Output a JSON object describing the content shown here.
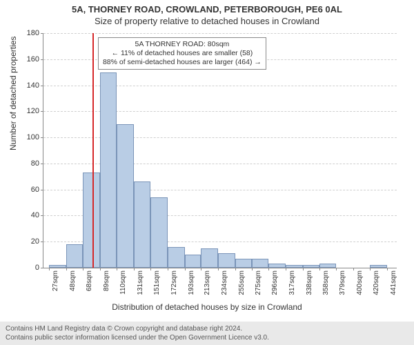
{
  "title_line1": "5A, THORNEY ROAD, CROWLAND, PETERBOROUGH, PE6 0AL",
  "title_line2": "Size of property relative to detached houses in Crowland",
  "ylabel": "Number of detached properties",
  "xlabel": "Distribution of detached houses by size in Crowland",
  "chart": {
    "type": "histogram",
    "background_color": "#ffffff",
    "grid_color": "#cfcfcf",
    "axis_color": "#888888",
    "bar_fill": "#b9cde5",
    "bar_border": "#7a94b8",
    "ref_line_color": "#d62728",
    "ref_line_x": 80,
    "ylim": [
      0,
      180
    ],
    "ytick_step": 20,
    "x_tick_labels": [
      "27sqm",
      "48sqm",
      "68sqm",
      "89sqm",
      "110sqm",
      "131sqm",
      "151sqm",
      "172sqm",
      "193sqm",
      "213sqm",
      "234sqm",
      "255sqm",
      "275sqm",
      "296sqm",
      "317sqm",
      "338sqm",
      "358sqm",
      "379sqm",
      "400sqm",
      "420sqm",
      "441sqm"
    ],
    "x_tick_positions": [
      27,
      48,
      68,
      89,
      110,
      131,
      151,
      172,
      193,
      213,
      234,
      255,
      275,
      296,
      317,
      338,
      358,
      379,
      400,
      420,
      441
    ],
    "xlim": [
      20,
      453
    ],
    "bars": [
      {
        "x0": 27,
        "x1": 48,
        "h": 2
      },
      {
        "x0": 48,
        "x1": 68,
        "h": 18
      },
      {
        "x0": 68,
        "x1": 89,
        "h": 73
      },
      {
        "x0": 89,
        "x1": 110,
        "h": 150
      },
      {
        "x0": 110,
        "x1": 131,
        "h": 110
      },
      {
        "x0": 131,
        "x1": 151,
        "h": 66
      },
      {
        "x0": 151,
        "x1": 172,
        "h": 54
      },
      {
        "x0": 172,
        "x1": 193,
        "h": 16
      },
      {
        "x0": 193,
        "x1": 213,
        "h": 10
      },
      {
        "x0": 213,
        "x1": 234,
        "h": 15
      },
      {
        "x0": 234,
        "x1": 255,
        "h": 11
      },
      {
        "x0": 255,
        "x1": 275,
        "h": 7
      },
      {
        "x0": 275,
        "x1": 296,
        "h": 7
      },
      {
        "x0": 296,
        "x1": 317,
        "h": 3
      },
      {
        "x0": 317,
        "x1": 338,
        "h": 2
      },
      {
        "x0": 338,
        "x1": 358,
        "h": 2
      },
      {
        "x0": 358,
        "x1": 379,
        "h": 3
      },
      {
        "x0": 379,
        "x1": 400,
        "h": 0
      },
      {
        "x0": 400,
        "x1": 420,
        "h": 0
      },
      {
        "x0": 420,
        "x1": 441,
        "h": 2
      }
    ],
    "title_fontsize": 13,
    "label_fontsize": 12,
    "tick_fontsize": 11
  },
  "annotation": {
    "line1": "5A THORNEY ROAD: 80sqm",
    "line2": "← 11% of detached houses are smaller (58)",
    "line3": "88% of semi-detached houses are larger (464) →",
    "border_color": "#888888",
    "bg_color": "#ffffff",
    "fontsize": 10.5
  },
  "footer": {
    "line1": "Contains HM Land Registry data © Crown copyright and database right 2024.",
    "line2": "Contains public sector information licensed under the Open Government Licence v3.0.",
    "bg_color": "#e9e9e9"
  }
}
